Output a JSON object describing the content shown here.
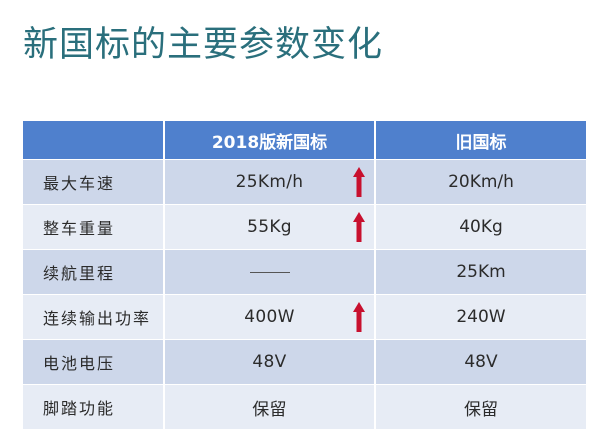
{
  "title": "新国标的主要参数变化",
  "table": {
    "headers": {
      "label": "",
      "new_standard": "2018版新国标",
      "old_standard": "旧国标"
    },
    "rows": [
      {
        "label": "最大车速",
        "new_value": "25Km/h",
        "old_value": "20Km/h",
        "new_increased": true
      },
      {
        "label": "整车重量",
        "new_value": "55Kg",
        "old_value": "40Kg",
        "new_increased": true
      },
      {
        "label": "续航里程",
        "new_value": "",
        "new_is_dash": true,
        "old_value": "25Km",
        "new_increased": false
      },
      {
        "label": "连续输出功率",
        "new_value": "400W",
        "old_value": "240W",
        "new_increased": true
      },
      {
        "label": "电池电压",
        "new_value": "48V",
        "old_value": "48V",
        "new_increased": false
      },
      {
        "label": "脚踏功能",
        "new_value": "保留",
        "old_value": "保留",
        "new_increased": false
      }
    ]
  },
  "icons": {
    "increase": "arrow-up-icon"
  },
  "colors": {
    "title": "#2a6f7c",
    "header_bg": "#4f80cd",
    "row_dark": "#cdd7ea",
    "row_light": "#e7ecf5",
    "arrow": "#c8102e"
  }
}
